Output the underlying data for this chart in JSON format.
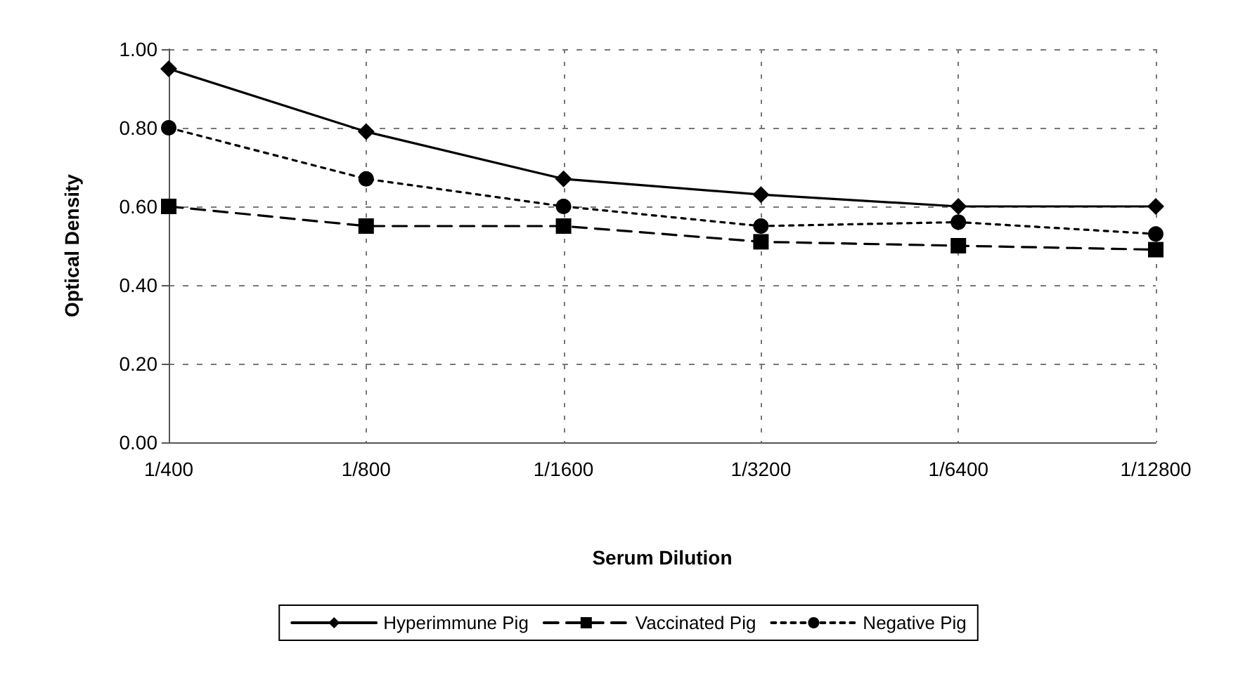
{
  "chart_data": {
    "type": "line",
    "xlabel": "Serum Dilution",
    "ylabel": "Optical Density",
    "categories": [
      "1/400",
      "1/800",
      "1/1600",
      "1/3200",
      "1/6400",
      "1/12800"
    ],
    "series": [
      {
        "name": "Hyperimmune Pig",
        "color": "#000000",
        "values": [
          0.95,
          0.79,
          0.67,
          0.63,
          0.6,
          0.6
        ],
        "marker": "diamond",
        "line_style": "solid"
      },
      {
        "name": "Vaccinated Pig",
        "color": "#000000",
        "values": [
          0.6,
          0.55,
          0.55,
          0.51,
          0.5,
          0.49
        ],
        "marker": "square",
        "line_style": "dashed"
      },
      {
        "name": "Negative Pig",
        "color": "#000000",
        "values": [
          0.8,
          0.67,
          0.6,
          0.55,
          0.56,
          0.53
        ],
        "marker": "circle",
        "line_style": "dotted"
      }
    ],
    "ylim": [
      0,
      1
    ],
    "yticks": [
      {
        "value": 0,
        "label": "0.00"
      },
      {
        "value": 0.2,
        "label": "0.20"
      },
      {
        "value": 0.4,
        "label": "0.40"
      },
      {
        "value": 0.6,
        "label": "0.60"
      },
      {
        "value": 0.8,
        "label": "0.80"
      },
      {
        "value": 1,
        "label": "1.00"
      }
    ],
    "grid": true,
    "legend": "bottom"
  }
}
